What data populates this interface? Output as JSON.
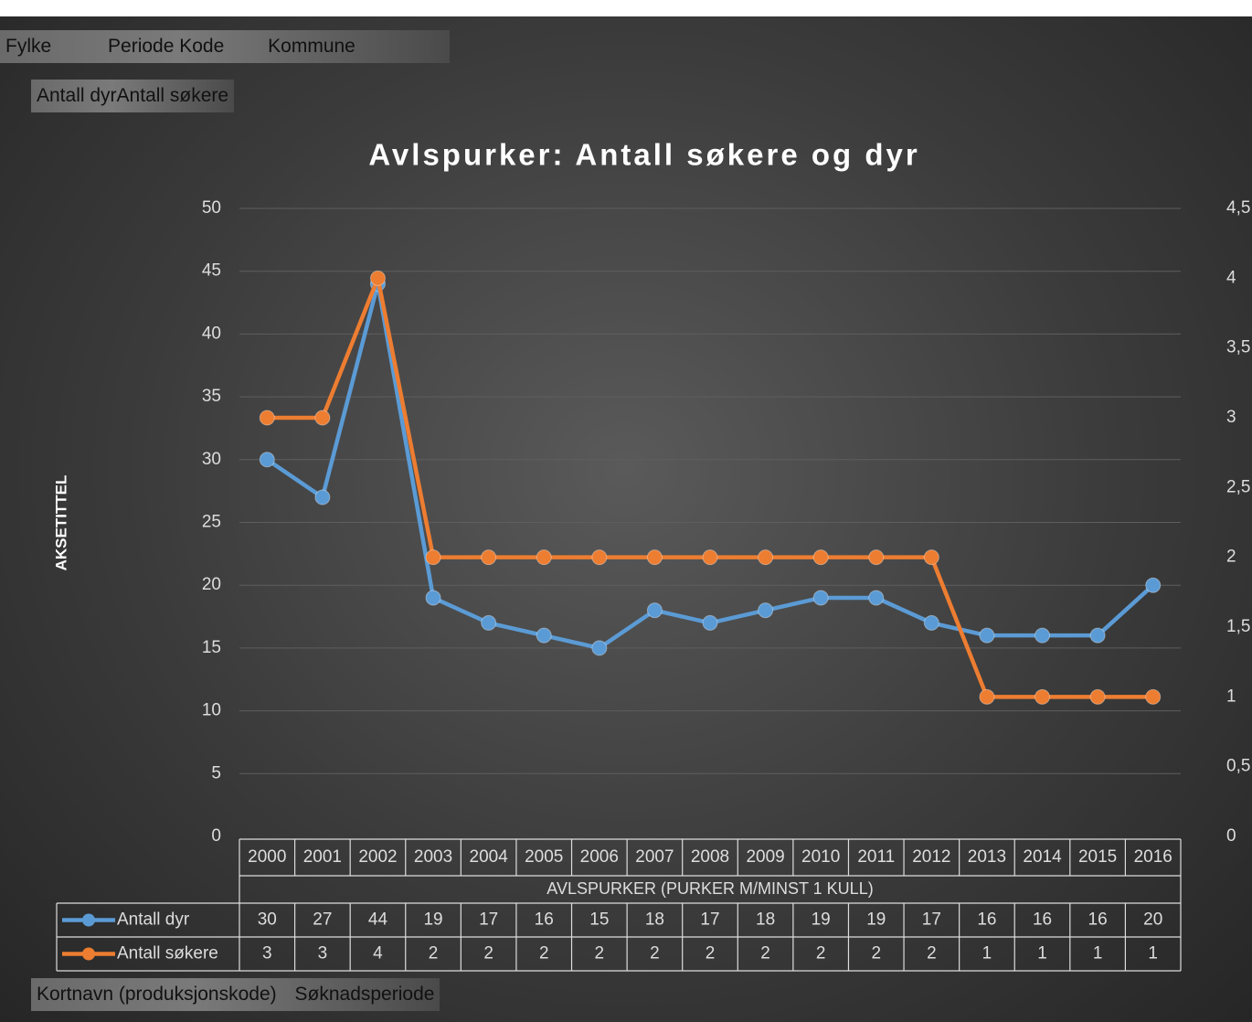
{
  "field_buttons": {
    "filters": [
      "Fylke",
      "Periode Kode",
      "Kommune"
    ],
    "values": [
      "Antall dyr",
      "Antall søkere"
    ],
    "rows": [
      "Kortnavn (produksjonskode)",
      "Søknadsperiode"
    ]
  },
  "chart_data": {
    "type": "line",
    "title": "Avlspurker: Antall søkere og dyr",
    "y_label": "AKSETITTEL",
    "x_label": "AVLSPURKER (PURKER M/MINST 1 KULL)",
    "categories": [
      "2000",
      "2001",
      "2002",
      "2003",
      "2004",
      "2005",
      "2006",
      "2007",
      "2008",
      "2009",
      "2010",
      "2011",
      "2012",
      "2013",
      "2014",
      "2015",
      "2016"
    ],
    "series": [
      {
        "name": "Antall dyr",
        "color": "#5b9bd5",
        "values": [
          30,
          27,
          44,
          19,
          17,
          16,
          15,
          18,
          17,
          18,
          19,
          19,
          17,
          16,
          16,
          16,
          20
        ]
      },
      {
        "name": "Antall søkere",
        "color": "#ed7d31",
        "axis": "y2",
        "values": [
          3,
          3,
          4,
          2,
          2,
          2,
          2,
          2,
          2,
          2,
          2,
          2,
          2,
          1,
          1,
          1,
          1
        ]
      }
    ],
    "ylim": [
      0,
      50
    ],
    "yticks": [
      0,
      5,
      10,
      15,
      20,
      25,
      30,
      35,
      40,
      45,
      50
    ],
    "y2lim": [
      0,
      4.5
    ],
    "y2ticks": [
      0,
      {
        "value": 0.5,
        "label": "0,5"
      },
      1,
      {
        "value": 1.5,
        "label": "1,5"
      },
      2,
      {
        "value": 2.5,
        "label": "2,5"
      },
      3,
      {
        "value": 3.5,
        "label": "3,5"
      },
      4,
      {
        "value": 4.5,
        "label": "4,5"
      }
    ],
    "grid": true,
    "data_table": true
  }
}
